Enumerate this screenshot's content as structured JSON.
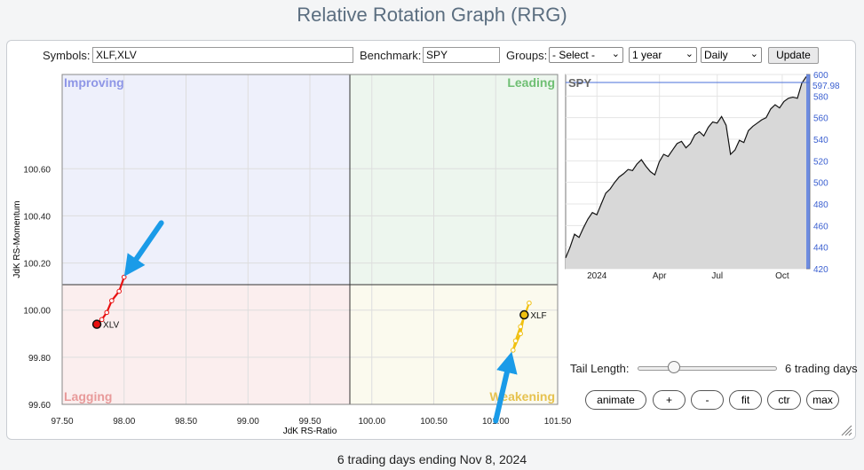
{
  "page": {
    "title": "Relative Rotation Graph (RRG)",
    "footer": "6 trading days ending Nov 8, 2024"
  },
  "controls": {
    "symbols_label": "Symbols:",
    "symbols_value": "XLF,XLV",
    "benchmark_label": "Benchmark:",
    "benchmark_value": "SPY",
    "groups_label": "Groups:",
    "groups_value": "- Select -",
    "period_value": "1 year",
    "frequency_value": "Daily",
    "update_label": "Update"
  },
  "rrg": {
    "quadrants": {
      "improving": "Improving",
      "leading": "Leading",
      "lagging": "Lagging",
      "weakening": "Weakening"
    },
    "quadrant_colors": {
      "improving": "#eef0fb",
      "leading": "#edf6ee",
      "lagging": "#fbeeee",
      "weakening": "#fbfaee"
    },
    "label_colors": {
      "improving": "#8e96e6",
      "leading": "#6fbf73",
      "lagging": "#e89a9a",
      "weakening": "#e6c24f"
    },
    "xlabel": "JdK RS-Ratio",
    "ylabel": "JdK RS-Momentum",
    "x_ticks": [
      "97.50",
      "98.00",
      "98.50",
      "99.00",
      "99.50",
      "100.00",
      "100.50",
      "101.00",
      "101.50"
    ],
    "y_ticks": [
      "100.60",
      "100.40",
      "100.20",
      "100.00",
      "99.80",
      "99.60"
    ],
    "xlim": [
      97.5,
      101.5
    ],
    "ylim": [
      99.6,
      101.0
    ],
    "series": [
      {
        "name": "XLV",
        "color": "#e81010",
        "points": [
          [
            98.0,
            100.14
          ],
          [
            97.96,
            100.08
          ],
          [
            97.9,
            100.04
          ],
          [
            97.86,
            99.99
          ],
          [
            97.82,
            99.96
          ],
          [
            97.78,
            99.94
          ]
        ]
      },
      {
        "name": "XLF",
        "color": "#f0c010",
        "points": [
          [
            101.27,
            100.03
          ],
          [
            101.2,
            99.93
          ],
          [
            101.16,
            99.87
          ],
          [
            101.14,
            99.83
          ],
          [
            101.2,
            99.9
          ],
          [
            101.23,
            99.98
          ]
        ]
      }
    ],
    "annotations": [
      {
        "type": "arrow",
        "color": "#1a9be8",
        "from": [
          98.3,
          100.37
        ],
        "to": [
          98.05,
          100.18
        ]
      },
      {
        "type": "arrow",
        "color": "#1a9be8",
        "from": [
          101.0,
          99.53
        ],
        "to": [
          101.11,
          99.78
        ]
      }
    ]
  },
  "benchmark_chart": {
    "symbol": "SPY",
    "last_value": "597.98",
    "y_ticks": [
      "600",
      "580",
      "560",
      "540",
      "520",
      "500",
      "480",
      "460",
      "440",
      "420"
    ],
    "x_ticks": [
      "2024",
      "Apr",
      "Jul",
      "Oct"
    ],
    "ylim": [
      420,
      600
    ],
    "values": [
      430,
      440,
      452,
      449,
      458,
      466,
      472,
      470,
      480,
      490,
      494,
      500,
      505,
      508,
      512,
      511,
      517,
      521,
      515,
      510,
      507,
      519,
      526,
      524,
      530,
      536,
      538,
      532,
      536,
      544,
      547,
      543,
      551,
      556,
      555,
      561,
      553,
      526,
      530,
      539,
      537,
      548,
      552,
      555,
      558,
      560,
      568,
      572,
      569,
      575,
      578,
      579,
      578,
      592,
      598
    ]
  },
  "tail": {
    "label": "Tail Length:",
    "value": "6 trading days",
    "slider_value": 6,
    "slider_max": 25
  },
  "buttons": {
    "animate": "animate",
    "plus": "+",
    "minus": "-",
    "fit": "fit",
    "ctr": "ctr",
    "max": "max"
  }
}
